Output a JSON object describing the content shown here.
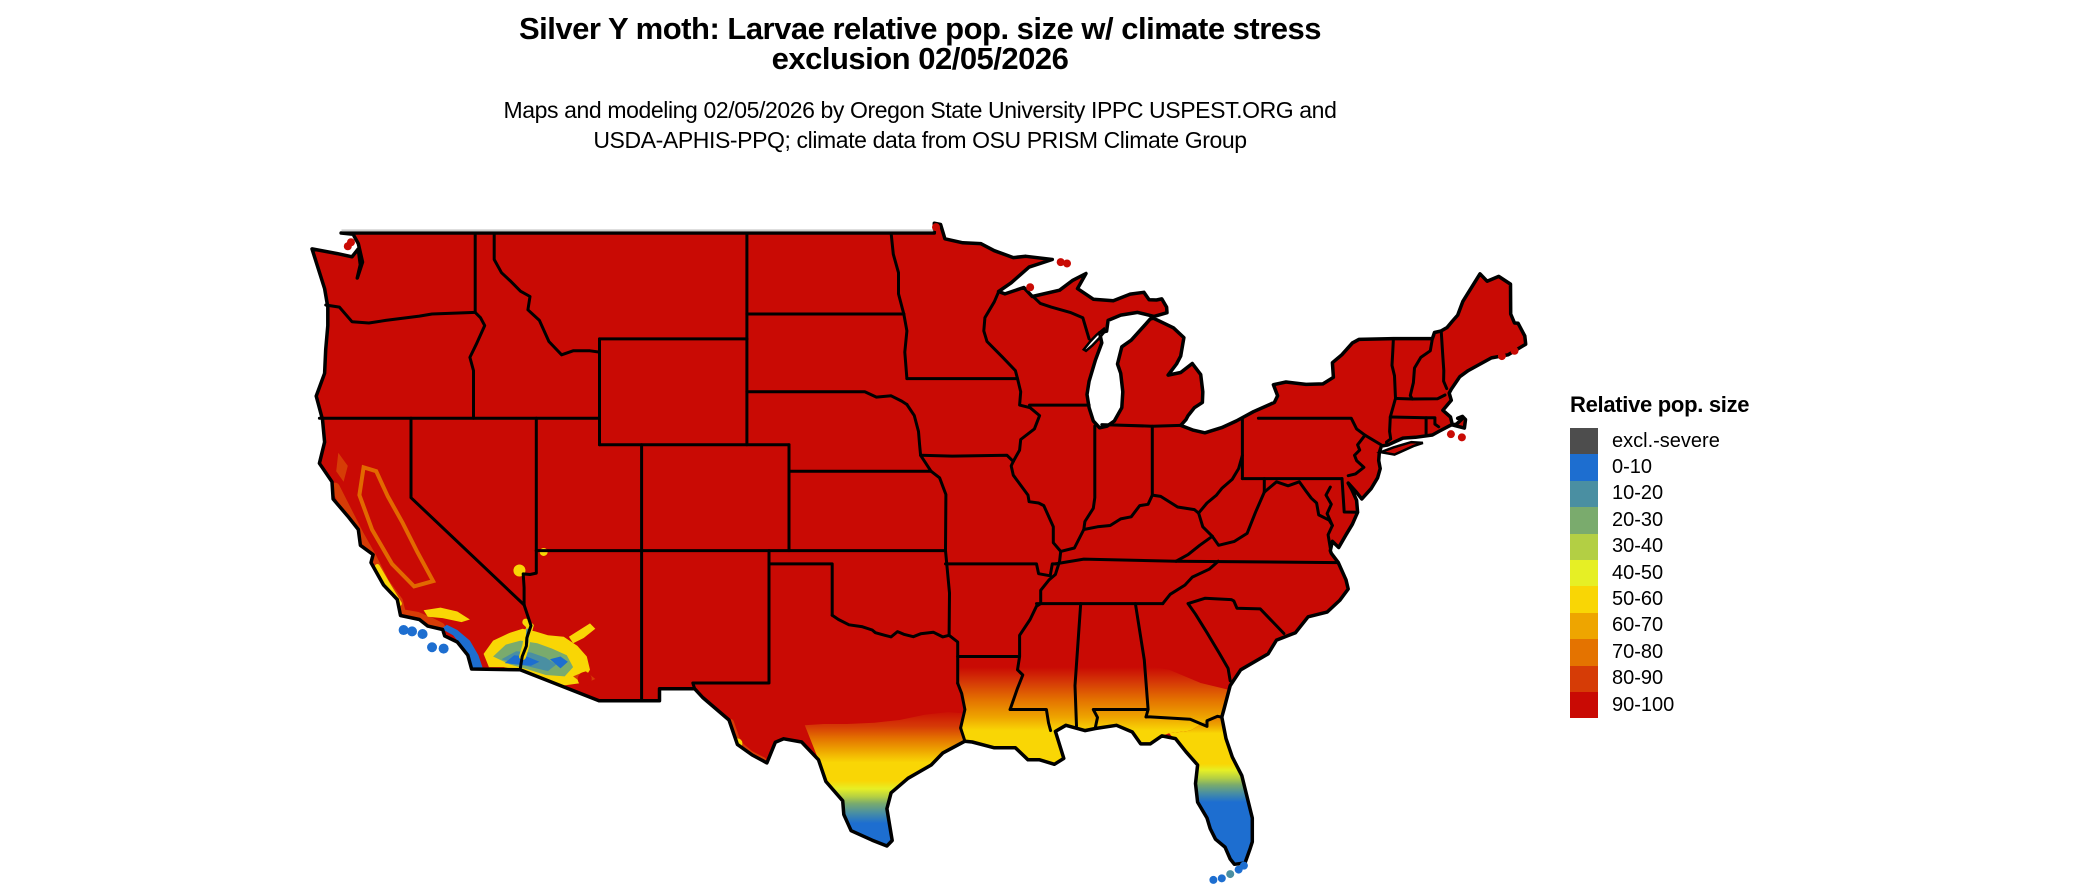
{
  "header": {
    "title_line1": "Silver Y moth: Larvae relative pop. size w/ climate stress",
    "title_line2": "exclusion 02/05/2026",
    "subtitle_line1": "Maps and modeling 02/05/2026 by Oregon State University IPPC USPEST.ORG and",
    "subtitle_line2": "USDA-APHIS-PPQ; climate data from OSU PRISM Climate Group"
  },
  "legend": {
    "title": "Relative pop. size",
    "items": [
      {
        "label": "excl.-severe",
        "color": "#4d4d4d"
      },
      {
        "label": "0-10",
        "color": "#1d6ed0"
      },
      {
        "label": "10-20",
        "color": "#4a8fa2"
      },
      {
        "label": "20-30",
        "color": "#7aab6d"
      },
      {
        "label": "30-40",
        "color": "#b3cf44"
      },
      {
        "label": "40-50",
        "color": "#e6ef25"
      },
      {
        "label": "50-60",
        "color": "#f9d605"
      },
      {
        "label": "60-70",
        "color": "#eea500"
      },
      {
        "label": "70-80",
        "color": "#e47300"
      },
      {
        "label": "80-90",
        "color": "#d63c06"
      },
      {
        "label": "90-100",
        "color": "#c90a04"
      }
    ]
  },
  "map": {
    "water_color": "#ffffff",
    "state_border_color": "#000000",
    "clip_edge_color": "#c9c9c9"
  }
}
